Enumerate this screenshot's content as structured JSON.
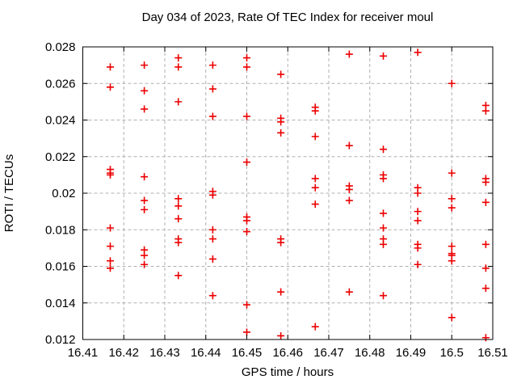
{
  "chart_data": {
    "type": "scatter",
    "title": "Day 034 of 2023, Rate Of TEC Index for receiver moul",
    "xlabel": "GPS time / hours",
    "ylabel": "ROTI / TECUs",
    "xlim": [
      16.41,
      16.51
    ],
    "ylim": [
      0.012,
      0.028
    ],
    "x_ticks": [
      16.41,
      16.42,
      16.43,
      16.44,
      16.45,
      16.46,
      16.47,
      16.48,
      16.49,
      16.5,
      16.51
    ],
    "x_tick_labels": [
      "16.41",
      "16.42",
      "16.43",
      "16.44",
      "16.45",
      "16.46",
      "16.47",
      "16.48",
      "16.49",
      "16.5",
      "16.51"
    ],
    "y_ticks": [
      0.012,
      0.014,
      0.016,
      0.018,
      0.02,
      0.022,
      0.024,
      0.026,
      0.028
    ],
    "y_tick_labels": [
      "0.012",
      "0.014",
      "0.016",
      "0.018",
      "0.02",
      "0.022",
      "0.024",
      "0.026",
      "0.028"
    ],
    "grid": true,
    "legend": "none",
    "marker": {
      "shape": "plus",
      "color": "#ec0000",
      "size": 9
    },
    "series": [
      {
        "name": "ROTI",
        "points": [
          [
            16.4167,
            0.0269
          ],
          [
            16.4167,
            0.0258
          ],
          [
            16.4167,
            0.0213
          ],
          [
            16.4167,
            0.0211
          ],
          [
            16.4167,
            0.021
          ],
          [
            16.4167,
            0.0181
          ],
          [
            16.4167,
            0.0171
          ],
          [
            16.4167,
            0.0163
          ],
          [
            16.4167,
            0.0159
          ],
          [
            16.425,
            0.027
          ],
          [
            16.425,
            0.0256
          ],
          [
            16.425,
            0.0246
          ],
          [
            16.425,
            0.0209
          ],
          [
            16.425,
            0.0196
          ],
          [
            16.425,
            0.0191
          ],
          [
            16.425,
            0.0169
          ],
          [
            16.425,
            0.0166
          ],
          [
            16.425,
            0.0161
          ],
          [
            16.4333,
            0.0274
          ],
          [
            16.4333,
            0.0269
          ],
          [
            16.4333,
            0.025
          ],
          [
            16.4333,
            0.0197
          ],
          [
            16.4333,
            0.0193
          ],
          [
            16.4333,
            0.0186
          ],
          [
            16.4333,
            0.0175
          ],
          [
            16.4333,
            0.0173
          ],
          [
            16.4333,
            0.0155
          ],
          [
            16.4417,
            0.027
          ],
          [
            16.4417,
            0.0257
          ],
          [
            16.4417,
            0.0242
          ],
          [
            16.4417,
            0.0201
          ],
          [
            16.4417,
            0.0199
          ],
          [
            16.4417,
            0.018
          ],
          [
            16.4417,
            0.0175
          ],
          [
            16.4417,
            0.0164
          ],
          [
            16.4417,
            0.0144
          ],
          [
            16.45,
            0.0274
          ],
          [
            16.45,
            0.0269
          ],
          [
            16.45,
            0.0242
          ],
          [
            16.45,
            0.0217
          ],
          [
            16.45,
            0.0187
          ],
          [
            16.45,
            0.0185
          ],
          [
            16.45,
            0.0179
          ],
          [
            16.45,
            0.0139
          ],
          [
            16.45,
            0.0124
          ],
          [
            16.4583,
            0.0265
          ],
          [
            16.4583,
            0.0241
          ],
          [
            16.4583,
            0.0239
          ],
          [
            16.4583,
            0.0233
          ],
          [
            16.4583,
            0.0175
          ],
          [
            16.4583,
            0.0173
          ],
          [
            16.4583,
            0.0146
          ],
          [
            16.4583,
            0.0122
          ],
          [
            16.4667,
            0.0247
          ],
          [
            16.4667,
            0.0245
          ],
          [
            16.4667,
            0.0231
          ],
          [
            16.4667,
            0.0208
          ],
          [
            16.4667,
            0.0203
          ],
          [
            16.4667,
            0.0194
          ],
          [
            16.4667,
            0.0127
          ],
          [
            16.475,
            0.0276
          ],
          [
            16.475,
            0.0226
          ],
          [
            16.475,
            0.0204
          ],
          [
            16.475,
            0.0202
          ],
          [
            16.475,
            0.0196
          ],
          [
            16.475,
            0.0146
          ],
          [
            16.4833,
            0.0275
          ],
          [
            16.4833,
            0.0224
          ],
          [
            16.4833,
            0.021
          ],
          [
            16.4833,
            0.0208
          ],
          [
            16.4833,
            0.0189
          ],
          [
            16.4833,
            0.0181
          ],
          [
            16.4833,
            0.0175
          ],
          [
            16.4833,
            0.0172
          ],
          [
            16.4833,
            0.0144
          ],
          [
            16.4917,
            0.0277
          ],
          [
            16.4917,
            0.0203
          ],
          [
            16.4917,
            0.02
          ],
          [
            16.4917,
            0.019
          ],
          [
            16.4917,
            0.0185
          ],
          [
            16.4917,
            0.0172
          ],
          [
            16.4917,
            0.017
          ],
          [
            16.4917,
            0.0161
          ],
          [
            16.5,
            0.026
          ],
          [
            16.5,
            0.0211
          ],
          [
            16.5,
            0.0197
          ],
          [
            16.5,
            0.0192
          ],
          [
            16.5,
            0.0171
          ],
          [
            16.5,
            0.0167
          ],
          [
            16.5,
            0.0166
          ],
          [
            16.5,
            0.0163
          ],
          [
            16.5,
            0.0132
          ],
          [
            16.5083,
            0.0248
          ],
          [
            16.5083,
            0.0245
          ],
          [
            16.5083,
            0.0208
          ],
          [
            16.5083,
            0.0206
          ],
          [
            16.5083,
            0.0195
          ],
          [
            16.5083,
            0.0172
          ],
          [
            16.5083,
            0.0159
          ],
          [
            16.5083,
            0.0148
          ],
          [
            16.5083,
            0.0121
          ]
        ]
      }
    ]
  },
  "colors": {
    "marker": "#ec0000",
    "grid": "#b0b0b0",
    "axis": "#000000",
    "background": "#ffffff"
  }
}
